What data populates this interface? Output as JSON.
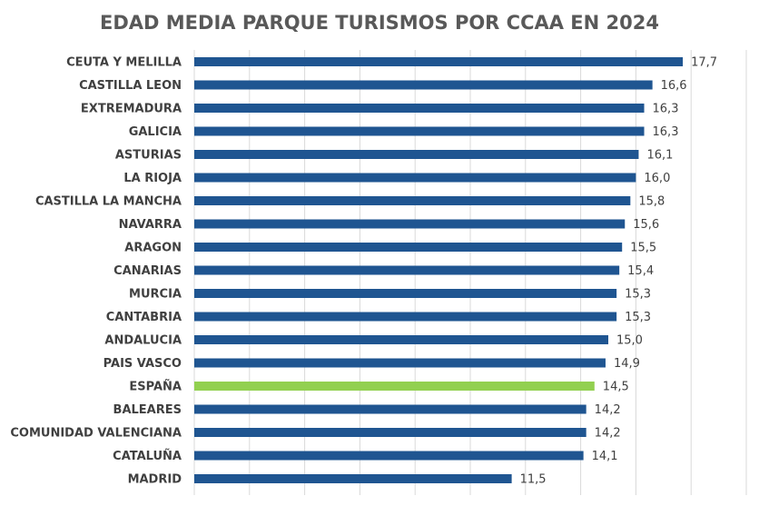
{
  "chart_data": {
    "type": "bar",
    "orientation": "horizontal",
    "title": "EDAD MEDIA PARQUE TURISMOS POR CCAA EN 2024",
    "categories": [
      "CEUTA Y MELILLA",
      "CASTILLA LEON",
      "EXTREMADURA",
      "GALICIA",
      "ASTURIAS",
      "LA RIOJA",
      "CASTILLA LA MANCHA",
      "NAVARRA",
      "ARAGON",
      "CANARIAS",
      "MURCIA",
      "CANTABRIA",
      "ANDALUCIA",
      "PAIS VASCO",
      "ESPAÑA",
      "BALEARES",
      "COMUNIDAD VALENCIANA",
      "CATALUÑA",
      "MADRID"
    ],
    "values": [
      17.7,
      16.6,
      16.3,
      16.3,
      16.1,
      16.0,
      15.8,
      15.6,
      15.5,
      15.4,
      15.3,
      15.3,
      15.0,
      14.9,
      14.5,
      14.2,
      14.2,
      14.1,
      11.5
    ],
    "value_labels": [
      "17,7",
      "16,6",
      "16,3",
      "16,3",
      "16,1",
      "16,0",
      "15,8",
      "15,6",
      "15,5",
      "15,4",
      "15,3",
      "15,3",
      "15,0",
      "14,9",
      "14,5",
      "14,2",
      "14,2",
      "14,1",
      "11,5"
    ],
    "highlight_category": "ESPAÑA",
    "colors": {
      "bar": "#1f5591",
      "highlight": "#92d050",
      "grid": "#d9d9d9",
      "title": "#595959",
      "text": "#404040"
    },
    "xlim": [
      0,
      20
    ],
    "grid": true,
    "legend": "none"
  }
}
